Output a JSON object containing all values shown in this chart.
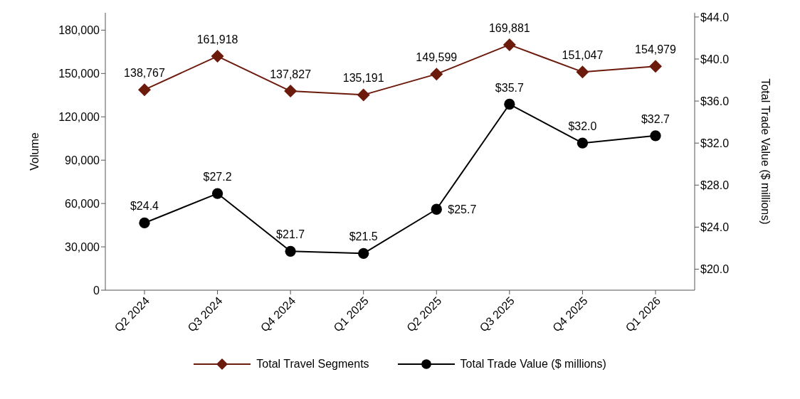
{
  "chart_data": {
    "type": "line",
    "categories": [
      "Q2 2024",
      "Q3 2024",
      "Q4 2024",
      "Q1 2025",
      "Q2 2025",
      "Q3 2025",
      "Q4 2025",
      "Q1 2026"
    ],
    "series": [
      {
        "name": "Total Travel Segments",
        "color": "#6b1a0c",
        "marker": "diamond",
        "values": [
          138767,
          161918,
          137827,
          135191,
          149599,
          169881,
          151047,
          154979
        ],
        "value_labels": [
          "138,767",
          "161,918",
          "137,827",
          "135,191",
          "149,599",
          "169,881",
          "151,047",
          "154,979"
        ]
      },
      {
        "name": "Total Trade Value ($ millions)",
        "color": "#000000",
        "marker": "circle",
        "axis": "y2",
        "values": [
          24.4,
          27.2,
          21.7,
          21.5,
          25.7,
          35.7,
          32.0,
          32.7
        ],
        "value_labels": [
          "$24.4",
          "$27.2",
          "$21.7",
          "$21.5",
          "$25.7",
          "$35.7",
          "$32.0",
          "$32.7"
        ]
      }
    ],
    "ylabel": "Volume",
    "y2label": "Total Trade Value ($ millions)",
    "ylim": [
      0,
      192000
    ],
    "yticks": [
      0,
      {
        "value": 30000,
        "label": "30,000"
      },
      {
        "value": 60000,
        "label": "60,000"
      },
      {
        "value": 90000,
        "label": "90,000"
      },
      {
        "value": 120000,
        "label": "120,000"
      },
      {
        "value": 150000,
        "label": "150,000"
      },
      {
        "value": 180000,
        "label": "180,000"
      }
    ],
    "y2lim": [
      18,
      44.4
    ],
    "y2ticks": [
      {
        "value": 20,
        "label": "$20.0"
      },
      {
        "value": 24,
        "label": "$24.0"
      },
      {
        "value": 28,
        "label": "$28.0"
      },
      {
        "value": 32,
        "label": "$32.0"
      },
      {
        "value": 36,
        "label": "$36.0"
      },
      {
        "value": 40,
        "label": "$40.0"
      },
      {
        "value": 44,
        "label": "$44.0"
      }
    ],
    "legend": "bottom",
    "line_style": "solid"
  }
}
